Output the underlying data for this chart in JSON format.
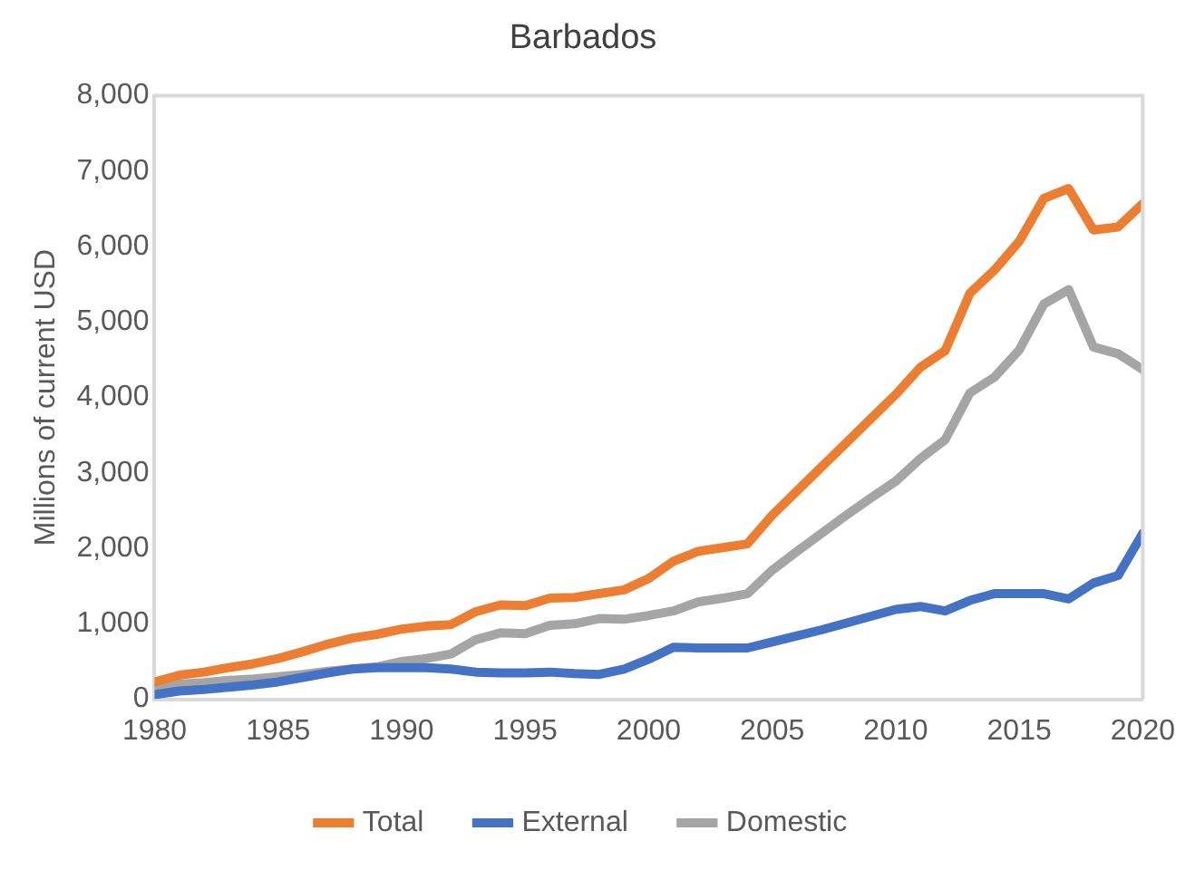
{
  "chart_data": {
    "type": "line",
    "title": "Barbados",
    "ylabel": "Millions of current USD",
    "x": [
      1980,
      1981,
      1982,
      1983,
      1984,
      1985,
      1986,
      1987,
      1988,
      1989,
      1990,
      1991,
      1992,
      1993,
      1994,
      1995,
      1996,
      1997,
      1998,
      1999,
      2000,
      2001,
      2002,
      2003,
      2004,
      2005,
      2006,
      2007,
      2008,
      2009,
      2010,
      2011,
      2012,
      2013,
      2014,
      2015,
      2016,
      2017,
      2018,
      2019,
      2020
    ],
    "series": [
      {
        "name": "Total",
        "color": "#ed7d31",
        "values": [
          230,
          320,
          360,
          420,
          470,
          540,
          630,
          730,
          810,
          860,
          930,
          970,
          990,
          1160,
          1250,
          1240,
          1340,
          1350,
          1400,
          1450,
          1600,
          1830,
          1960,
          2010,
          2060,
          2440,
          2760,
          3080,
          3400,
          3720,
          4040,
          4400,
          4620,
          5380,
          5690,
          6070,
          6640,
          6770,
          6220,
          6260,
          6570
        ]
      },
      {
        "name": "External",
        "color": "#4472c4",
        "values": [
          60,
          110,
          130,
          160,
          190,
          230,
          290,
          350,
          400,
          420,
          420,
          420,
          400,
          360,
          350,
          350,
          360,
          340,
          330,
          400,
          530,
          690,
          680,
          680,
          680,
          760,
          840,
          920,
          1010,
          1100,
          1190,
          1230,
          1170,
          1310,
          1400,
          1400,
          1400,
          1330,
          1540,
          1640,
          2200
        ]
      },
      {
        "name": "Domestic",
        "color": "#a5a5a5",
        "values": [
          160,
          200,
          220,
          250,
          270,
          300,
          330,
          370,
          400,
          430,
          500,
          540,
          600,
          790,
          880,
          870,
          980,
          1000,
          1070,
          1060,
          1110,
          1170,
          1290,
          1340,
          1400,
          1710,
          1960,
          2200,
          2440,
          2670,
          2890,
          3190,
          3440,
          4060,
          4270,
          4630,
          5240,
          5430,
          4670,
          4580,
          4370
        ]
      }
    ],
    "xlim": [
      1980,
      2020
    ],
    "xticks": [
      1980,
      1985,
      1990,
      1995,
      2000,
      2005,
      2010,
      2015,
      2020
    ],
    "ylim": [
      0,
      8000
    ],
    "yticks": [
      0,
      {
        "value": 1000,
        "label": "1,000"
      },
      {
        "value": 2000,
        "label": "2,000"
      },
      {
        "value": 3000,
        "label": "3,000"
      },
      {
        "value": 4000,
        "label": "4,000"
      },
      {
        "value": 5000,
        "label": "5,000"
      },
      {
        "value": 6000,
        "label": "6,000"
      },
      {
        "value": 7000,
        "label": "7,000"
      },
      {
        "value": 8000,
        "label": "8,000"
      }
    ],
    "grid": false,
    "legend": "bottom",
    "marker": "none",
    "line_style": "solid"
  }
}
